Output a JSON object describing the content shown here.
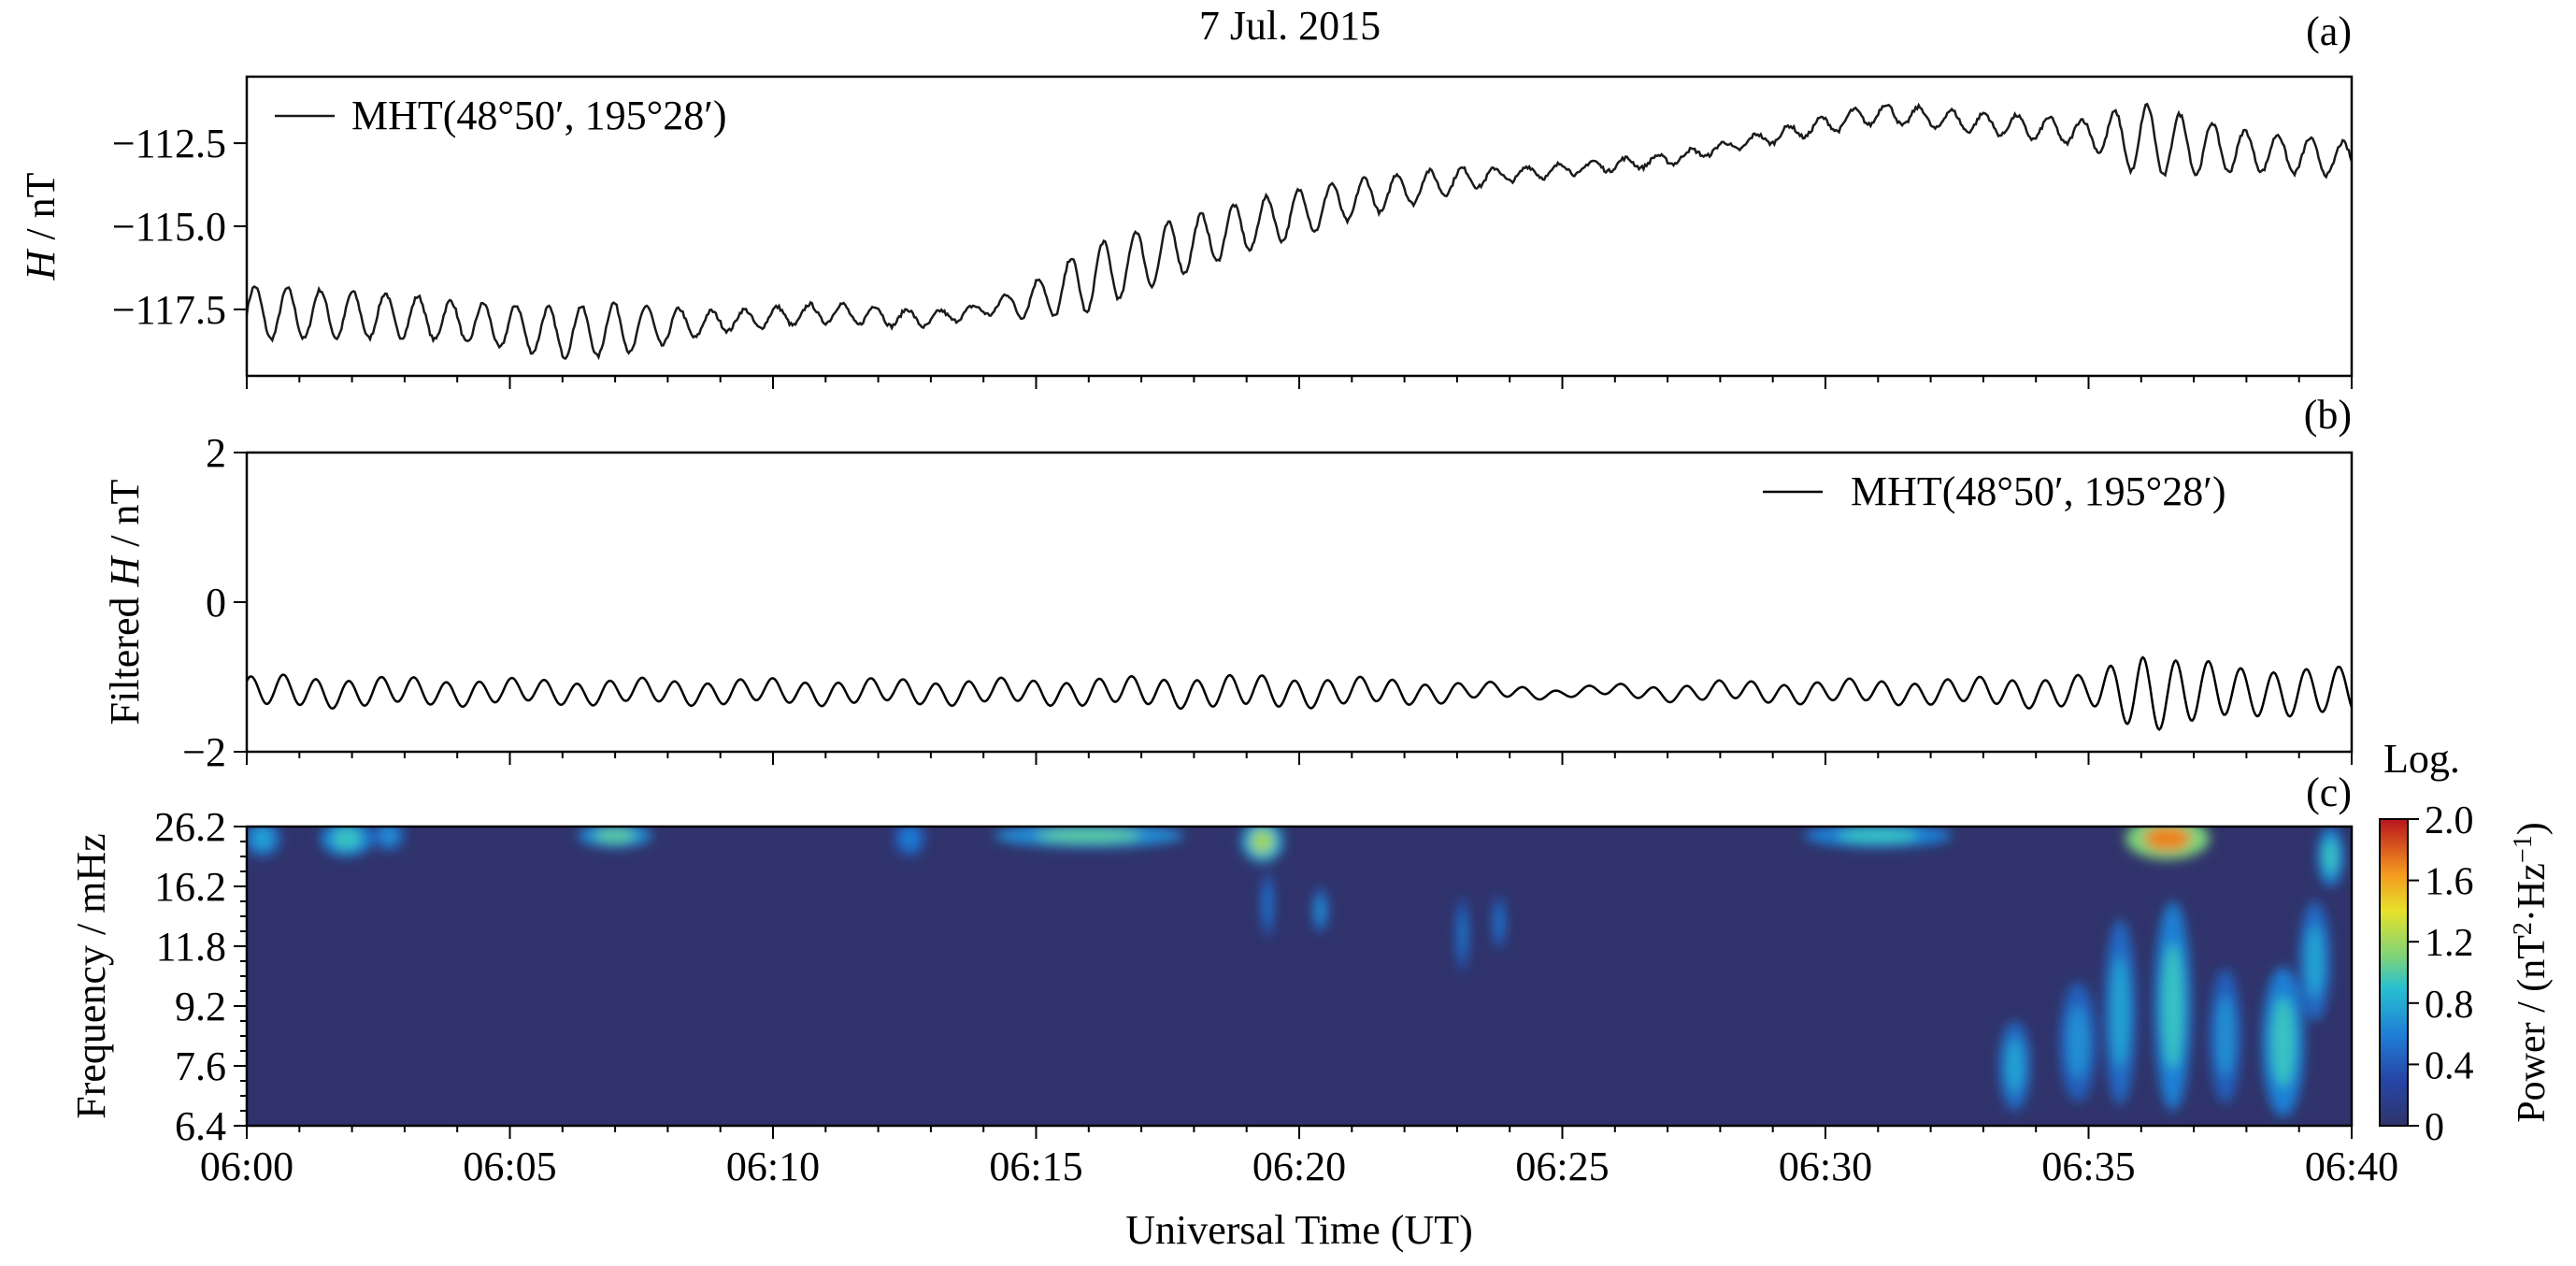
{
  "figure": {
    "title": "7 Jul. 2015",
    "xlabel": "Universal Time (UT)"
  },
  "chart_data": [
    {
      "panel": "(a)",
      "type": "line",
      "ylabel_italic": "H",
      "ylabel_rest": " / nT",
      "ylim": [
        -119.5,
        -110.5
      ],
      "yticks": [
        -117.5,
        -115.0,
        -112.5
      ],
      "ytick_labels": [
        "−117.5",
        "−115.0",
        "−112.5"
      ],
      "xlim_minutes": [
        0,
        40
      ],
      "legend": {
        "label": "MHT(48°50′, 195°28′)",
        "position": "top-left"
      },
      "series": [
        {
          "name": "MHT(48°50′, 195°28′)",
          "color": "#1a1a1a",
          "trend": [
            [
              0,
              -117.6
            ],
            [
              3,
              -117.7
            ],
            [
              6,
              -118.2
            ],
            [
              8,
              -118.0
            ],
            [
              11,
              -117.6
            ],
            [
              13,
              -117.8
            ],
            [
              15,
              -117.2
            ],
            [
              17,
              -116.0
            ],
            [
              19,
              -115.0
            ],
            [
              21,
              -114.2
            ],
            [
              23,
              -113.6
            ],
            [
              25,
              -113.3
            ],
            [
              27,
              -113.0
            ],
            [
              29,
              -112.3
            ],
            [
              31,
              -111.6
            ],
            [
              33,
              -111.9
            ],
            [
              35,
              -112.2
            ],
            [
              37,
              -112.6
            ],
            [
              40,
              -113.0
            ]
          ],
          "oscillation_amplitude": [
            [
              0,
              0.8
            ],
            [
              4,
              0.6
            ],
            [
              7,
              0.8
            ],
            [
              9,
              0.3
            ],
            [
              12,
              0.3
            ],
            [
              14,
              0.15
            ],
            [
              16,
              1.0
            ],
            [
              18,
              0.8
            ],
            [
              20,
              0.7
            ],
            [
              22,
              0.5
            ],
            [
              24,
              0.2
            ],
            [
              28,
              0.15
            ],
            [
              31,
              0.3
            ],
            [
              33,
              0.3
            ],
            [
              35,
              0.4
            ],
            [
              36,
              1.1
            ],
            [
              38,
              0.6
            ],
            [
              40,
              0.5
            ]
          ]
        }
      ]
    },
    {
      "panel": "(b)",
      "type": "line",
      "ylabel_pre": "Filtered ",
      "ylabel_italic": "H",
      "ylabel_rest": " / nT",
      "ylim": [
        -2,
        2
      ],
      "yticks": [
        -2,
        0,
        2
      ],
      "ytick_labels": [
        "−2",
        "0",
        "2"
      ],
      "xlim_minutes": [
        0,
        40
      ],
      "legend": {
        "label": "MHT(48°50′, 195°28′)",
        "position": "top-right"
      },
      "series": [
        {
          "name": "MHT(48°50′, 195°28′)",
          "color": "#000000",
          "baseline": -1.2,
          "amplitude": [
            [
              0,
              0.2
            ],
            [
              5,
              0.15
            ],
            [
              10,
              0.15
            ],
            [
              15,
              0.15
            ],
            [
              19,
              0.2
            ],
            [
              22,
              0.15
            ],
            [
              25,
              0.05
            ],
            [
              28,
              0.12
            ],
            [
              32,
              0.15
            ],
            [
              35,
              0.2
            ],
            [
              36,
              0.5
            ],
            [
              38,
              0.3
            ],
            [
              40,
              0.3
            ]
          ]
        }
      ]
    },
    {
      "panel": "(c)",
      "type": "heatmap",
      "ylabel": "Frequency / mHz",
      "ytick_labels": [
        "6.4",
        "7.6",
        "9.2",
        "11.8",
        "16.2",
        "26.2"
      ],
      "xlim_minutes": [
        0,
        40
      ],
      "xtick_labels": [
        "06:00",
        "06:05",
        "06:10",
        "06:15",
        "06:20",
        "06:25",
        "06:30",
        "06:35",
        "06:40"
      ],
      "background_color": "#30336b",
      "colorbar": {
        "title": "Log.",
        "label": "Power / (nT²·Hz⁻¹)",
        "range": [
          0,
          2.0
        ],
        "tick_labels": [
          "0",
          "0.4",
          "0.8",
          "1.2",
          "1.6",
          "2.0"
        ],
        "colormap": "jet"
      },
      "blobs": [
        {
          "t": 0.3,
          "f": 0.96,
          "level": 0.45,
          "w": 0.35,
          "h": 0.12
        },
        {
          "t": 1.9,
          "f": 0.96,
          "level": 0.55,
          "w": 0.5,
          "h": 0.12
        },
        {
          "t": 2.7,
          "f": 0.97,
          "level": 0.4,
          "w": 0.3,
          "h": 0.1
        },
        {
          "t": 7.0,
          "f": 0.97,
          "level": 0.6,
          "w": 0.7,
          "h": 0.08
        },
        {
          "t": 12.6,
          "f": 0.96,
          "level": 0.35,
          "w": 0.3,
          "h": 0.12
        },
        {
          "t": 16.0,
          "f": 0.97,
          "level": 0.6,
          "w": 1.8,
          "h": 0.08
        },
        {
          "t": 19.3,
          "f": 0.95,
          "level": 0.7,
          "w": 0.4,
          "h": 0.14
        },
        {
          "t": 19.4,
          "f": 0.74,
          "level": 0.35,
          "w": 0.12,
          "h": 0.22
        },
        {
          "t": 20.4,
          "f": 0.72,
          "level": 0.4,
          "w": 0.15,
          "h": 0.15
        },
        {
          "t": 23.1,
          "f": 0.64,
          "level": 0.35,
          "w": 0.12,
          "h": 0.25
        },
        {
          "t": 23.8,
          "f": 0.68,
          "level": 0.35,
          "w": 0.12,
          "h": 0.18
        },
        {
          "t": 31.0,
          "f": 0.97,
          "level": 0.55,
          "w": 1.4,
          "h": 0.08
        },
        {
          "t": 33.6,
          "f": 0.2,
          "level": 0.45,
          "w": 0.3,
          "h": 0.3
        },
        {
          "t": 34.8,
          "f": 0.28,
          "level": 0.4,
          "w": 0.35,
          "h": 0.4
        },
        {
          "t": 35.6,
          "f": 0.38,
          "level": 0.45,
          "w": 0.3,
          "h": 0.62
        },
        {
          "t": 36.5,
          "f": 0.96,
          "level": 1.0,
          "w": 0.8,
          "h": 0.14
        },
        {
          "t": 36.6,
          "f": 0.4,
          "level": 0.55,
          "w": 0.35,
          "h": 0.7
        },
        {
          "t": 37.6,
          "f": 0.3,
          "level": 0.4,
          "w": 0.3,
          "h": 0.45
        },
        {
          "t": 38.7,
          "f": 0.28,
          "level": 0.55,
          "w": 0.4,
          "h": 0.5
        },
        {
          "t": 39.3,
          "f": 0.55,
          "level": 0.45,
          "w": 0.3,
          "h": 0.4
        },
        {
          "t": 39.6,
          "f": 0.9,
          "level": 0.55,
          "w": 0.25,
          "h": 0.2
        }
      ]
    }
  ]
}
